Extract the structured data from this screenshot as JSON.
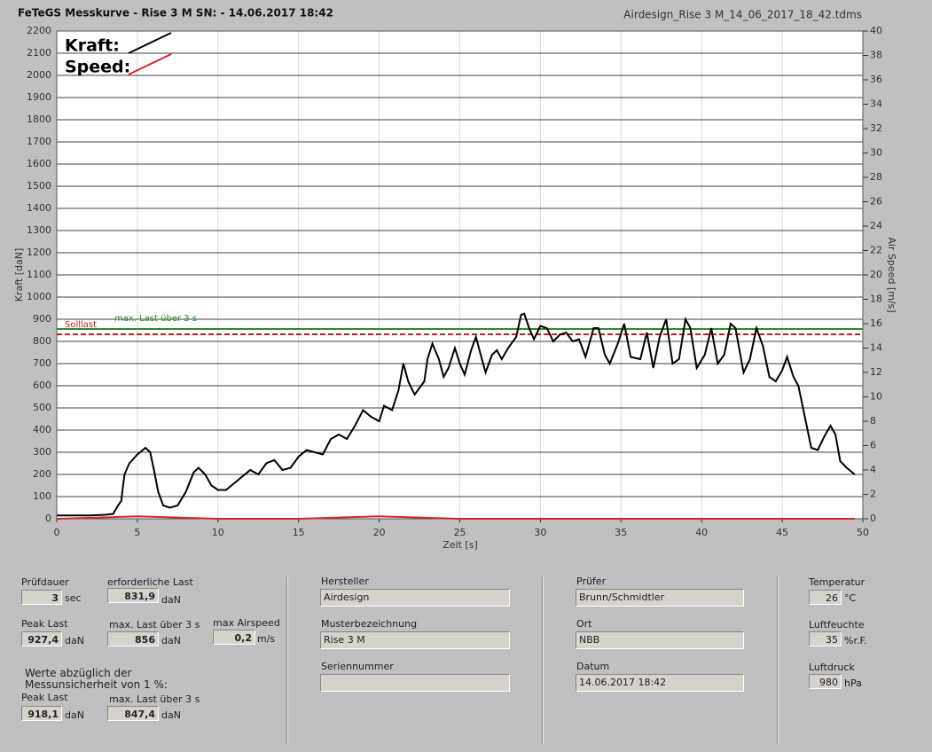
{
  "header": {
    "title": "FeTeGS Messkurve - Rise 3 M  SN:  - 14.06.2017 18:42",
    "filename": "Airdesign_Rise 3 M_14_06_2017_18_42.tdms"
  },
  "chart_data": {
    "type": "line",
    "xlabel": "Zeit [s]",
    "ylabel": "Kraft [daN]",
    "y2label": "Air Speed [m/s]",
    "xlim": [
      0,
      50
    ],
    "xticks": [
      0,
      5,
      10,
      15,
      20,
      25,
      30,
      35,
      40,
      45,
      50
    ],
    "ylim": [
      0,
      2200
    ],
    "yticks": [
      0,
      100,
      200,
      300,
      400,
      500,
      600,
      700,
      800,
      900,
      1000,
      1100,
      1200,
      1300,
      1400,
      1500,
      1600,
      1700,
      1800,
      1900,
      2000,
      2100,
      2200
    ],
    "y2lim": [
      0,
      40
    ],
    "y2ticks": [
      0,
      2,
      4,
      6,
      8,
      10,
      12,
      14,
      16,
      18,
      20,
      22,
      24,
      26,
      28,
      30,
      32,
      34,
      36,
      38,
      40
    ],
    "grid": true,
    "series": [
      {
        "name": "Kraft:",
        "color": "#000000",
        "x": [
          0,
          1,
          2,
          3,
          3.5,
          3.8,
          4.0,
          4.1,
          4.2,
          4.5,
          5,
          5.5,
          5.8,
          6.0,
          6.3,
          6.6,
          7.0,
          7.5,
          8.0,
          8.5,
          8.8,
          9.2,
          9.6,
          10.0,
          10.5,
          11,
          11.5,
          12,
          12.5,
          13,
          13.5,
          14,
          14.5,
          15,
          15.5,
          16,
          16.5,
          17,
          17.5,
          18,
          18.5,
          19,
          19.5,
          20,
          20.3,
          20.8,
          21.2,
          21.5,
          21.8,
          22.2,
          22.8,
          23,
          23.3,
          23.7,
          24,
          24.3,
          24.7,
          25,
          25.3,
          25.7,
          26,
          26.3,
          26.6,
          27,
          27.3,
          27.6,
          28,
          28.5,
          28.8,
          29,
          29.3,
          29.6,
          30,
          30.4,
          30.8,
          31.2,
          31.6,
          32,
          32.4,
          32.8,
          33.3,
          33.6,
          34,
          34.3,
          34.8,
          35.2,
          35.6,
          36.2,
          36.6,
          37,
          37.4,
          37.8,
          38.2,
          38.6,
          39,
          39.3,
          39.7,
          40.2,
          40.6,
          41,
          41.4,
          41.8,
          42.1,
          42.6,
          43,
          43.4,
          43.8,
          44.2,
          44.6,
          45,
          45.3,
          45.7,
          46,
          46.4,
          46.8,
          47.2,
          47.6,
          48,
          48.3,
          48.6,
          49,
          49.5
        ],
        "values": [
          15,
          15,
          15,
          18,
          22,
          60,
          80,
          140,
          200,
          250,
          290,
          320,
          300,
          230,
          120,
          60,
          50,
          60,
          120,
          210,
          230,
          200,
          150,
          130,
          130,
          160,
          190,
          220,
          200,
          250,
          265,
          220,
          230,
          280,
          310,
          300,
          290,
          360,
          380,
          360,
          420,
          490,
          460,
          440,
          510,
          490,
          580,
          700,
          620,
          560,
          620,
          720,
          790,
          720,
          640,
          680,
          770,
          700,
          650,
          760,
          820,
          740,
          660,
          740,
          760,
          720,
          770,
          820,
          920,
          925,
          860,
          810,
          870,
          860,
          800,
          830,
          840,
          800,
          810,
          730,
          860,
          860,
          740,
          700,
          790,
          880,
          730,
          720,
          840,
          680,
          820,
          900,
          700,
          720,
          900,
          860,
          680,
          740,
          860,
          700,
          740,
          880,
          860,
          660,
          720,
          860,
          780,
          640,
          620,
          670,
          730,
          640,
          600,
          460,
          320,
          310,
          370,
          420,
          380,
          260,
          230,
          200
        ]
      },
      {
        "name": "Speed:",
        "color": "#d02828",
        "axis": "y2",
        "x": [
          0,
          5,
          10,
          15,
          20,
          25,
          30,
          35,
          40,
          45,
          49.5
        ],
        "values": [
          0,
          0.2,
          0,
          0,
          0.2,
          0,
          0,
          0,
          0,
          0,
          0
        ]
      }
    ],
    "hlines": [
      {
        "label": "max. Last über  3 s",
        "value": 856,
        "color": "#2a8a2a",
        "dash": false
      },
      {
        "label": "Solllast",
        "value": 831.9,
        "color": "#c02020",
        "dash": true
      }
    ]
  },
  "panel": {
    "pruefdauer": {
      "label": "Prüfdauer",
      "value": "3",
      "unit": "sec"
    },
    "erf_last": {
      "label": "erforderliche Last",
      "value": "831,9",
      "unit": "daN"
    },
    "peak": {
      "label": "Peak Last",
      "value": "927,4",
      "unit": "daN"
    },
    "max3": {
      "label": "max. Last über  3 s",
      "value": "856",
      "unit": "daN"
    },
    "airspeed": {
      "label": "max Airspeed",
      "value": "0,2",
      "unit": "m/s"
    },
    "note": "Werte abzüglich der Messunsicherheit von 1  %:",
    "peak_corr": {
      "label": "Peak Last",
      "value": "918,1",
      "unit": "daN"
    },
    "max3_corr": {
      "label": "max. Last über  3 s",
      "value": "847,4",
      "unit": "daN"
    },
    "hersteller": {
      "label": "Hersteller",
      "value": "Airdesign"
    },
    "muster": {
      "label": "Musterbezeichnung",
      "value": "Rise 3 M"
    },
    "serie": {
      "label": "Seriennummer"
    },
    "pruefer": {
      "label": "Prüfer",
      "value": "Brunn/Schmidtler"
    },
    "ort": {
      "label": "Ort",
      "value": "NBB"
    },
    "datum": {
      "label": "Datum",
      "value": "14.06.2017 18:42"
    },
    "temp": {
      "label": "Temperatur",
      "value": "26",
      "unit": "°C"
    },
    "feuchte": {
      "label": "Luftfeuchte",
      "value": "35",
      "unit": "%r.F."
    },
    "druck": {
      "label": "Luftdruck",
      "value": "980",
      "unit": "hPa"
    }
  }
}
